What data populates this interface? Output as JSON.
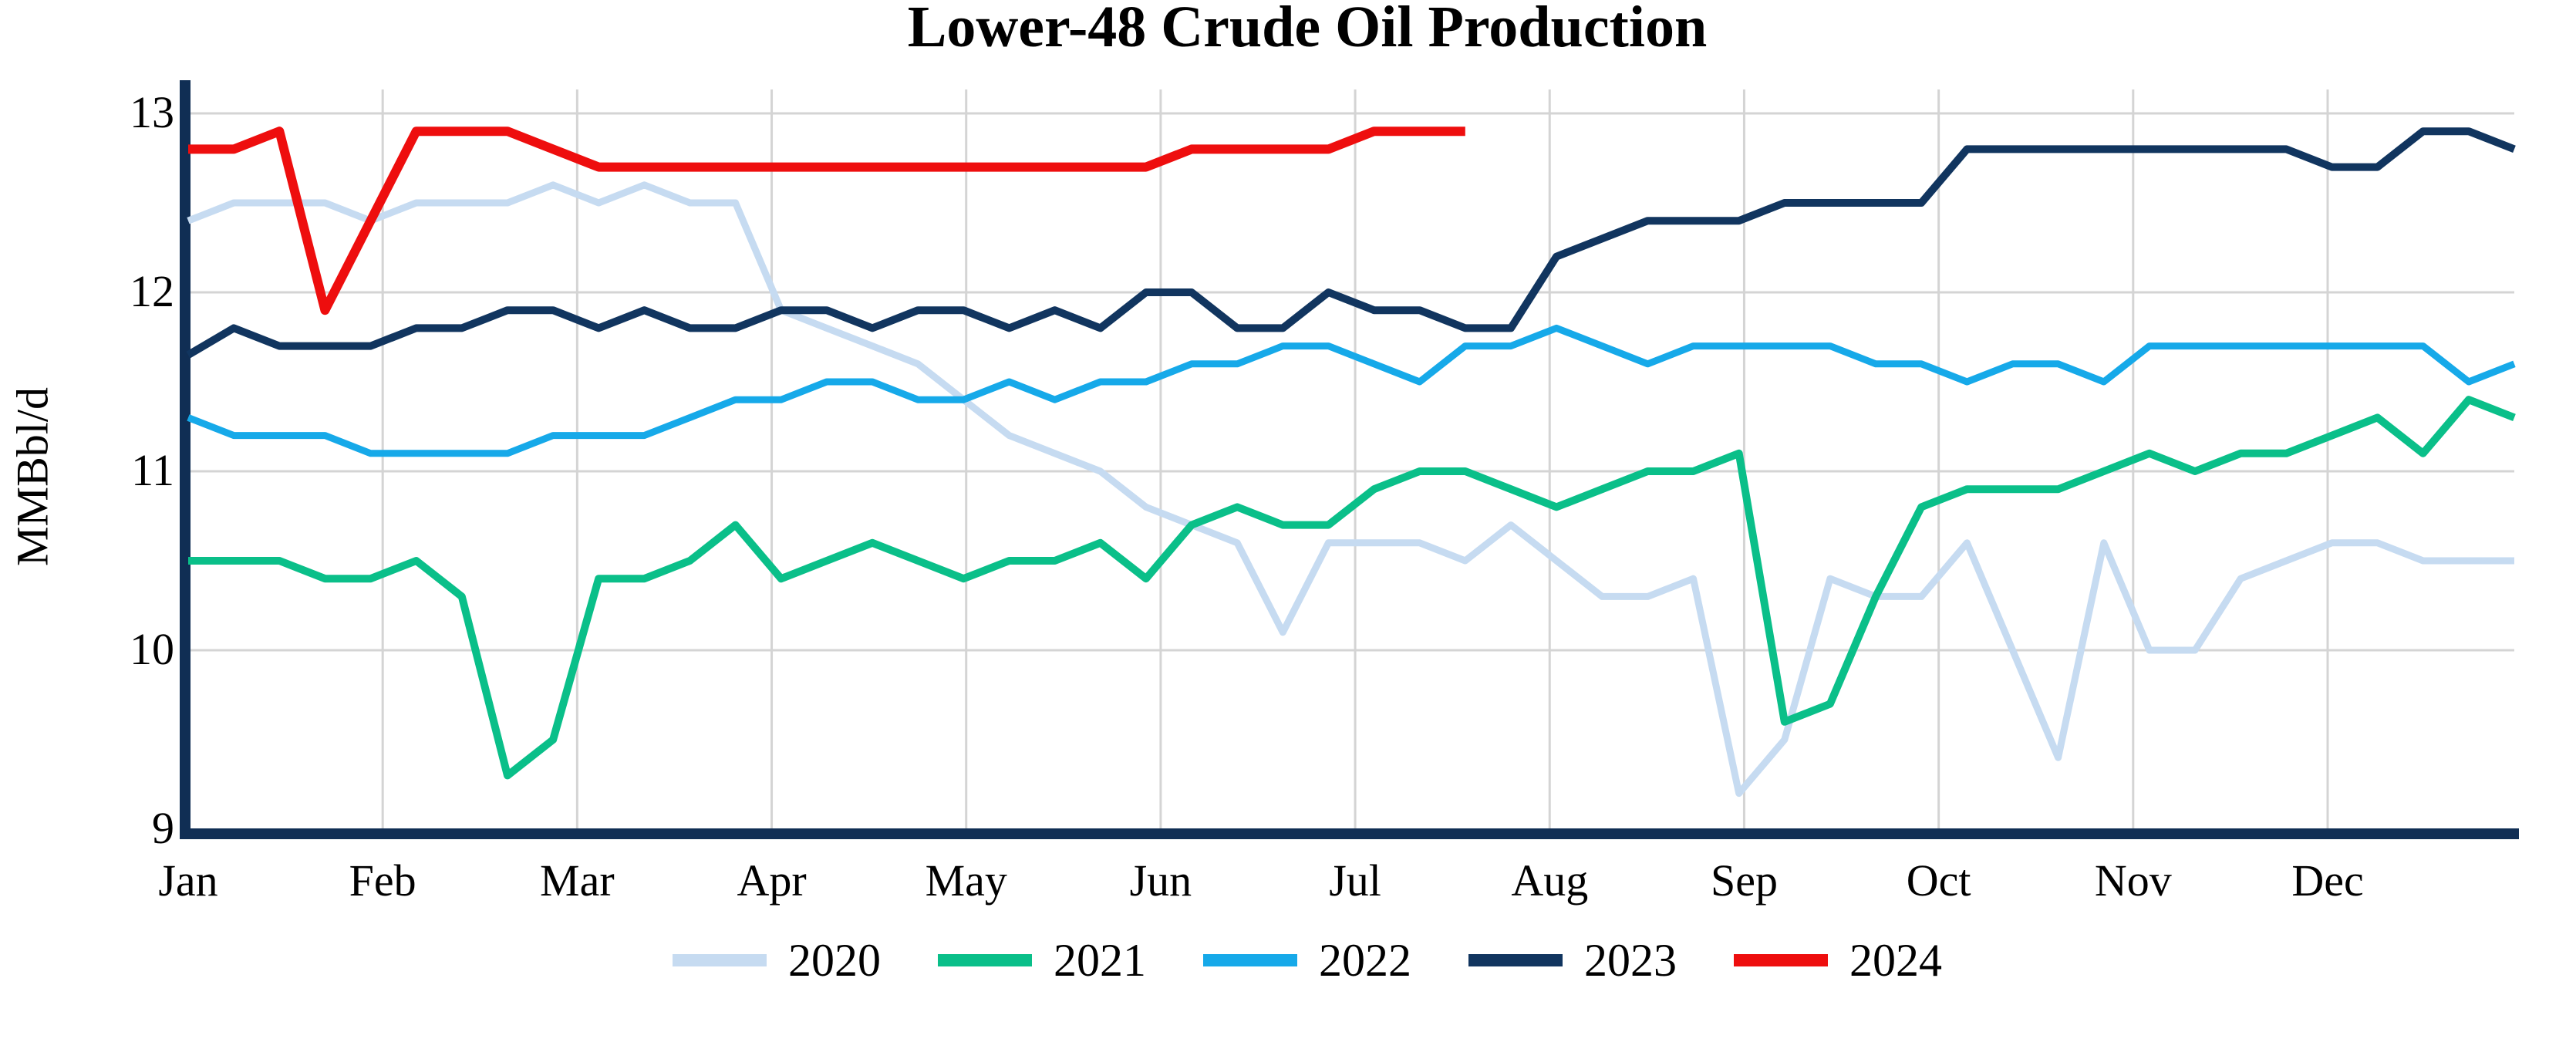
{
  "chart_data": {
    "type": "line",
    "title": "Lower-48 Crude Oil Production",
    "ylabel": "MMBbl/d",
    "xlabel": "",
    "ylim": [
      9,
      13
    ],
    "yticks": [
      9,
      10,
      11,
      12,
      13
    ],
    "xtick_labels": [
      "Jan",
      "Feb",
      "Mar",
      "Apr",
      "May",
      "Jun",
      "Jul",
      "Aug",
      "Sep",
      "Oct",
      "Nov",
      "Dec"
    ],
    "x_unit": "weekly data points, Jan through Dec",
    "grid": true,
    "legend_position": "bottom",
    "background_color": "#ffffff",
    "grid_color": "#d4d4d4",
    "axis_color": "#102e54",
    "series": [
      {
        "name": "2020",
        "color": "#c6dbf1",
        "stroke_width": 9,
        "values": [
          12.4,
          12.5,
          12.5,
          12.5,
          12.4,
          12.5,
          12.5,
          12.5,
          12.6,
          12.5,
          12.6,
          12.5,
          12.5,
          11.9,
          11.8,
          11.7,
          11.6,
          11.4,
          11.2,
          11.1,
          11.0,
          10.8,
          10.7,
          10.6,
          10.1,
          10.6,
          10.6,
          10.6,
          10.5,
          10.7,
          10.5,
          10.3,
          10.3,
          10.4,
          9.2,
          9.5,
          10.4,
          10.3,
          10.3,
          10.6,
          10.0,
          9.4,
          10.6,
          10.0,
          10.0,
          10.4,
          10.5,
          10.6,
          10.6,
          10.5,
          10.5,
          10.5
        ]
      },
      {
        "name": "2021",
        "color": "#0abf89",
        "stroke_width": 10,
        "values": [
          10.5,
          10.5,
          10.5,
          10.4,
          10.4,
          10.5,
          10.3,
          9.3,
          9.5,
          10.4,
          10.4,
          10.5,
          10.7,
          10.4,
          10.5,
          10.6,
          10.5,
          10.4,
          10.5,
          10.5,
          10.6,
          10.4,
          10.7,
          10.8,
          10.7,
          10.7,
          10.9,
          11.0,
          11.0,
          10.9,
          10.8,
          10.9,
          11.0,
          11.0,
          11.1,
          9.6,
          9.7,
          10.3,
          10.8,
          10.9,
          10.9,
          10.9,
          11.0,
          11.1,
          11.0,
          11.1,
          11.1,
          11.2,
          11.3,
          11.1,
          11.4,
          11.3
        ]
      },
      {
        "name": "2022",
        "color": "#16a9e9",
        "stroke_width": 9,
        "values": [
          11.3,
          11.2,
          11.2,
          11.2,
          11.1,
          11.1,
          11.1,
          11.1,
          11.2,
          11.2,
          11.2,
          11.3,
          11.4,
          11.4,
          11.5,
          11.5,
          11.4,
          11.4,
          11.5,
          11.4,
          11.5,
          11.5,
          11.6,
          11.6,
          11.7,
          11.7,
          11.6,
          11.5,
          11.7,
          11.7,
          11.8,
          11.7,
          11.6,
          11.7,
          11.7,
          11.7,
          11.7,
          11.6,
          11.6,
          11.5,
          11.6,
          11.6,
          11.5,
          11.7,
          11.7,
          11.7,
          11.7,
          11.7,
          11.7,
          11.7,
          11.5,
          11.6
        ]
      },
      {
        "name": "2023",
        "color": "#11355f",
        "stroke_width": 10,
        "values": [
          11.65,
          11.8,
          11.7,
          11.7,
          11.7,
          11.8,
          11.8,
          11.9,
          11.9,
          11.8,
          11.9,
          11.8,
          11.8,
          11.9,
          11.9,
          11.8,
          11.9,
          11.9,
          11.8,
          11.9,
          11.8,
          12.0,
          12.0,
          11.8,
          11.8,
          12.0,
          11.9,
          11.9,
          11.8,
          11.8,
          12.2,
          12.3,
          12.4,
          12.4,
          12.4,
          12.5,
          12.5,
          12.5,
          12.5,
          12.8,
          12.8,
          12.8,
          12.8,
          12.8,
          12.8,
          12.8,
          12.8,
          12.7,
          12.7,
          12.9,
          12.9,
          12.8
        ]
      },
      {
        "name": "2024",
        "color": "#ee0e0e",
        "stroke_width": 12,
        "values": [
          12.8,
          12.8,
          12.9,
          11.9,
          12.4,
          12.9,
          12.9,
          12.9,
          12.8,
          12.7,
          12.7,
          12.7,
          12.7,
          12.7,
          12.7,
          12.7,
          12.7,
          12.7,
          12.7,
          12.7,
          12.7,
          12.7,
          12.8,
          12.8,
          12.8,
          12.8,
          12.9,
          12.9,
          12.9
        ]
      }
    ]
  }
}
